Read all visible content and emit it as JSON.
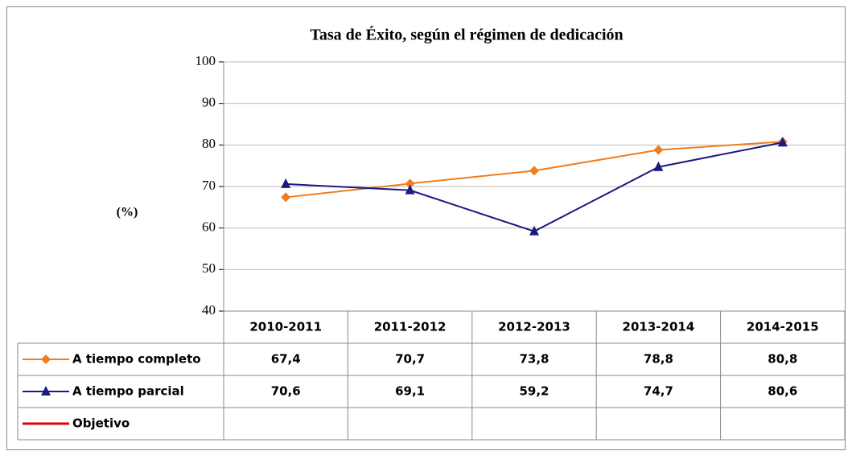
{
  "chart_data": {
    "type": "line",
    "title": "Tasa de Éxito, según el régimen de dedicación",
    "y_label": "(%)",
    "categories": [
      "2010-2011",
      "2011-2012",
      "2012-2013",
      "2013-2014",
      "2014-2015"
    ],
    "series": [
      {
        "name": "A tiempo completo",
        "color": "#f07d1e",
        "marker": "diamond",
        "values": [
          67.4,
          70.7,
          73.8,
          78.8,
          80.8
        ],
        "value_labels": [
          "67,4",
          "70,7",
          "73,8",
          "78,8",
          "80,8"
        ]
      },
      {
        "name": "A tiempo parcial",
        "color": "#1a1a80",
        "marker": "triangle",
        "values": [
          70.6,
          69.1,
          59.2,
          74.7,
          80.6
        ],
        "value_labels": [
          "70,6",
          "69,1",
          "59,2",
          "74,7",
          "80,6"
        ]
      },
      {
        "name": "Objetivo",
        "color": "#e00000",
        "marker": "none",
        "values": [
          null,
          null,
          null,
          null,
          null
        ]
      }
    ],
    "ylim": [
      40,
      100
    ],
    "yticks": [
      40,
      50,
      60,
      70,
      80,
      90,
      100
    ],
    "grid": true
  }
}
